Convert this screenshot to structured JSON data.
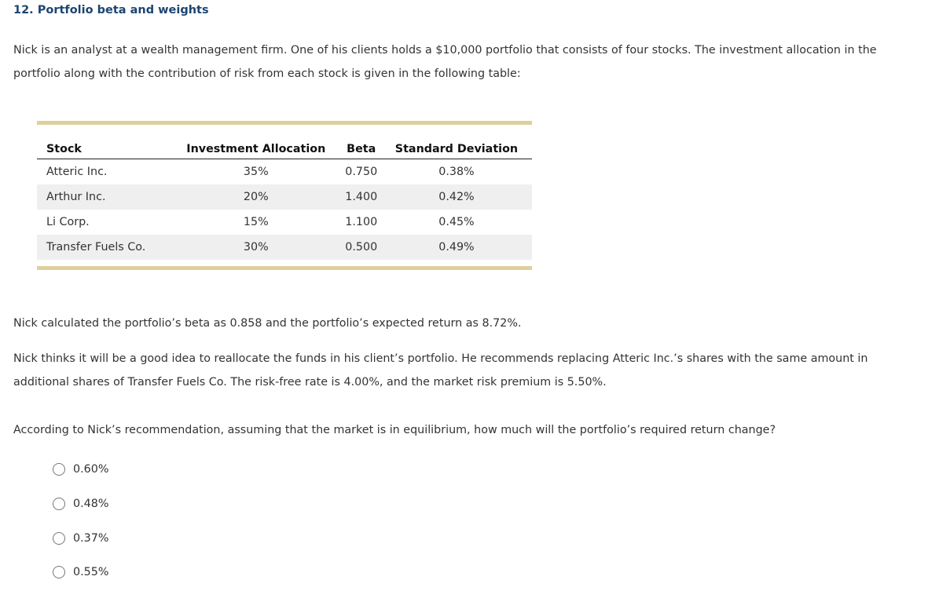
{
  "title": "12. Portfolio beta and weights",
  "intro": "Nick is an analyst at a wealth management firm. One of his clients holds a $10,000 portfolio that consists of four stocks. The investment allocation in the portfolio along with the contribution of risk from each stock is given in the following table:",
  "table": {
    "headers": [
      "Stock",
      "Investment Allocation",
      "Beta",
      "Standard Deviation"
    ],
    "rows": [
      [
        "Atteric Inc.",
        "35%",
        "0.750",
        "0.38%"
      ],
      [
        "Arthur Inc.",
        "20%",
        "1.400",
        "0.42%"
      ],
      [
        "Li Corp.",
        "15%",
        "1.100",
        "0.45%"
      ],
      [
        "Transfer Fuels Co.",
        "30%",
        "0.500",
        "0.49%"
      ]
    ]
  },
  "para2": "Nick calculated the portfolio’s beta as 0.858 and the portfolio’s expected return as 8.72%.",
  "para3": "Nick thinks it will be a good idea to reallocate the funds in his client’s portfolio. He recommends replacing Atteric Inc.’s shares with the same amount in additional shares of Transfer Fuels Co. The risk-free rate is 4.00%, and the market risk premium is 5.50%.",
  "question": "According to Nick’s recommendation, assuming that the market is in equilibrium, how much will the portfolio’s required return change?",
  "options": [
    "0.60%",
    "0.48%",
    "0.37%",
    "0.55%"
  ]
}
